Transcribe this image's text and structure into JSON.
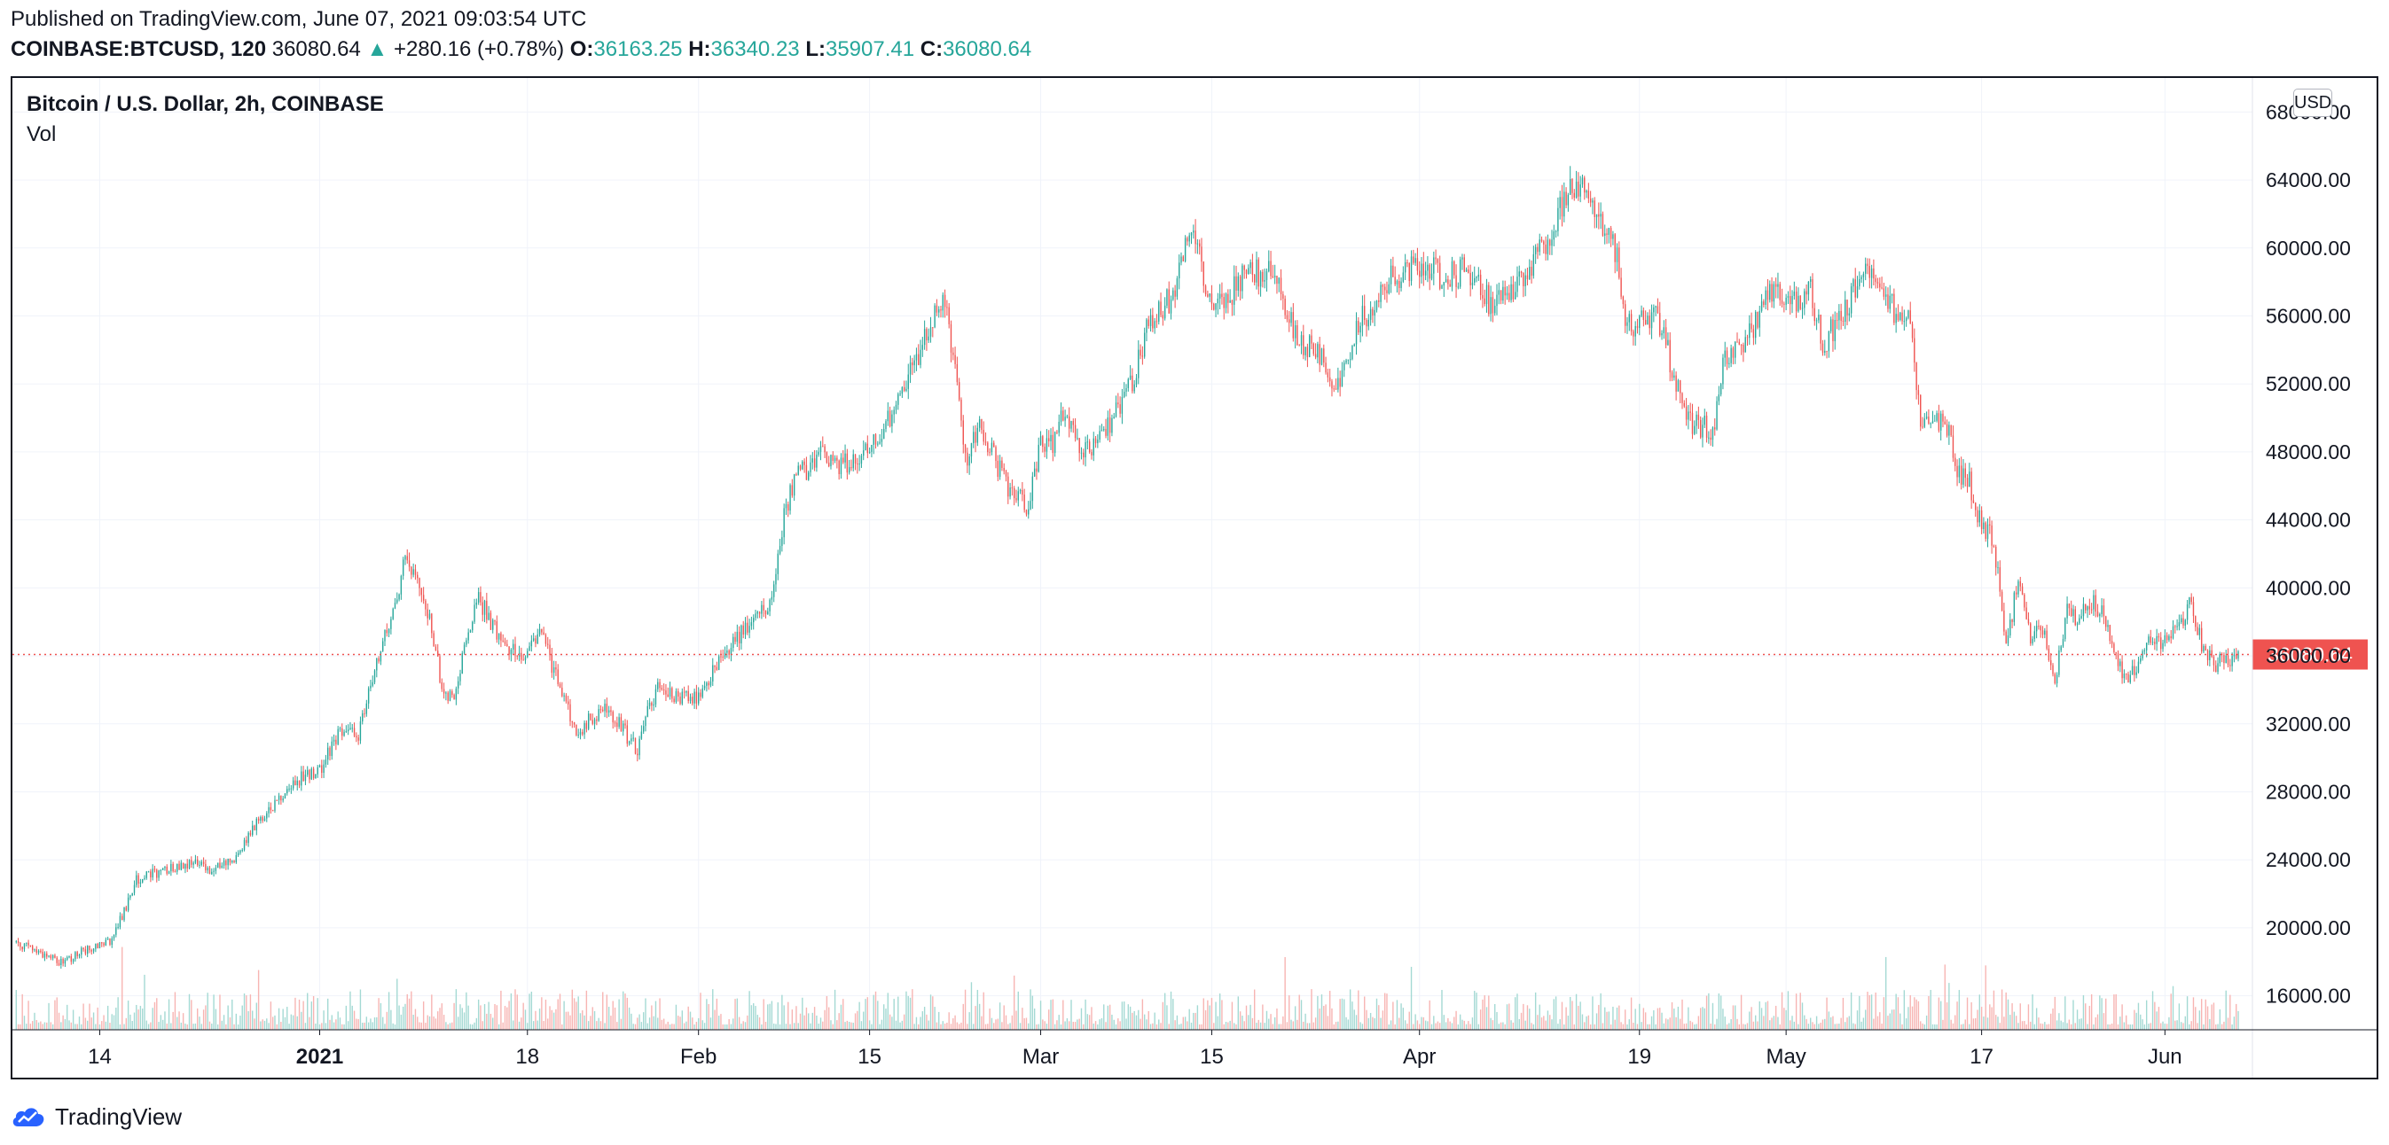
{
  "header": {
    "published": "Published on TradingView.com, June 07, 2021 09:03:54 UTC",
    "symbol": "COINBASE:BTCUSD, 120",
    "last": "36080.64",
    "change": "+280.16 (+0.78%)",
    "o_label": "O:",
    "o_value": "36163.25",
    "h_label": "H:",
    "h_value": "36340.23",
    "l_label": "L:",
    "l_value": "35907.41",
    "c_label": "C:",
    "c_value": "36080.64"
  },
  "legend": {
    "title": "Bitcoin / U.S. Dollar, 2h, COINBASE",
    "volume": "Vol"
  },
  "price_scale": {
    "currency_button": "USD"
  },
  "footer": {
    "brand": "TradingView"
  },
  "colors": {
    "up": "#26a69a",
    "down": "#ef5350",
    "up_volume": "#a3d9d3",
    "down_volume": "#f7b4b2",
    "grid": "#f0f3fa",
    "last_price": "#ef5350"
  },
  "chart_data": {
    "type": "candlestick",
    "title": "Bitcoin / U.S. Dollar, 2h, COINBASE",
    "interval": "2h",
    "ylim": [
      14000,
      70000
    ],
    "y_ticks": [
      "16000.00",
      "20000.00",
      "24000.00",
      "28000.00",
      "32000.00",
      "36000.00",
      "40000.00",
      "44000.00",
      "48000.00",
      "52000.00",
      "56000.00",
      "60000.00",
      "64000.00",
      "68000.00"
    ],
    "x_ticks": [
      {
        "label": "14",
        "date": "2020-12-14",
        "bold": false
      },
      {
        "label": "2021",
        "date": "2021-01-01",
        "bold": true
      },
      {
        "label": "18",
        "date": "2021-01-18",
        "bold": false
      },
      {
        "label": "Feb",
        "date": "2021-02-01",
        "bold": false
      },
      {
        "label": "15",
        "date": "2021-02-15",
        "bold": false
      },
      {
        "label": "Mar",
        "date": "2021-03-01",
        "bold": false
      },
      {
        "label": "15",
        "date": "2021-03-15",
        "bold": false
      },
      {
        "label": "Apr",
        "date": "2021-04-01",
        "bold": false
      },
      {
        "label": "19",
        "date": "2021-04-19",
        "bold": false
      },
      {
        "label": "May",
        "date": "2021-05-01",
        "bold": false
      },
      {
        "label": "17",
        "date": "2021-05-17",
        "bold": false
      },
      {
        "label": "Jun",
        "date": "2021-06-01",
        "bold": false
      }
    ],
    "last_price": 36080.64,
    "last_price_label": "36080.64",
    "close_path": [
      [
        "2020-12-07",
        19200
      ],
      [
        "2020-12-09",
        18600
      ],
      [
        "2020-12-11",
        17900
      ],
      [
        "2020-12-13",
        18800
      ],
      [
        "2020-12-15",
        19300
      ],
      [
        "2020-12-16",
        21000
      ],
      [
        "2020-12-17",
        22800
      ],
      [
        "2020-12-19",
        23300
      ],
      [
        "2020-12-21",
        23800
      ],
      [
        "2020-12-23",
        23500
      ],
      [
        "2020-12-25",
        24000
      ],
      [
        "2020-12-27",
        26500
      ],
      [
        "2020-12-28",
        27000
      ],
      [
        "2020-12-30",
        28700
      ],
      [
        "2021-01-01",
        29300
      ],
      [
        "2021-01-03",
        32000
      ],
      [
        "2021-01-04",
        31000
      ],
      [
        "2021-01-06",
        36200
      ],
      [
        "2021-01-08",
        41500
      ],
      [
        "2021-01-09",
        40200
      ],
      [
        "2021-01-10",
        38500
      ],
      [
        "2021-01-11",
        34000
      ],
      [
        "2021-01-12",
        33500
      ],
      [
        "2021-01-13",
        37000
      ],
      [
        "2021-01-14",
        39500
      ],
      [
        "2021-01-16",
        36500
      ],
      [
        "2021-01-18",
        36000
      ],
      [
        "2021-01-19",
        37500
      ],
      [
        "2021-01-21",
        33500
      ],
      [
        "2021-01-22",
        31500
      ],
      [
        "2021-01-24",
        32800
      ],
      [
        "2021-01-25",
        32500
      ],
      [
        "2021-01-27",
        30400
      ],
      [
        "2021-01-28",
        33200
      ],
      [
        "2021-01-29",
        34500
      ],
      [
        "2021-01-30",
        33700
      ],
      [
        "2021-02-01",
        33500
      ],
      [
        "2021-02-03",
        36200
      ],
      [
        "2021-02-05",
        37800
      ],
      [
        "2021-02-07",
        39200
      ],
      [
        "2021-02-08",
        44500
      ],
      [
        "2021-02-09",
        46500
      ],
      [
        "2021-02-11",
        47800
      ],
      [
        "2021-02-13",
        47200
      ],
      [
        "2021-02-15",
        48200
      ],
      [
        "2021-02-17",
        50200
      ],
      [
        "2021-02-19",
        53800
      ],
      [
        "2021-02-21",
        57400
      ],
      [
        "2021-02-22",
        52500
      ],
      [
        "2021-02-23",
        47500
      ],
      [
        "2021-02-24",
        49800
      ],
      [
        "2021-02-26",
        46200
      ],
      [
        "2021-02-28",
        44800
      ],
      [
        "2021-03-01",
        48800
      ],
      [
        "2021-03-02",
        48200
      ],
      [
        "2021-03-03",
        50800
      ],
      [
        "2021-03-04",
        48600
      ],
      [
        "2021-03-05",
        47800
      ],
      [
        "2021-03-06",
        48700
      ],
      [
        "2021-03-08",
        51200
      ],
      [
        "2021-03-10",
        55800
      ],
      [
        "2021-03-12",
        57300
      ],
      [
        "2021-03-13",
        60800
      ],
      [
        "2021-03-14",
        59800
      ],
      [
        "2021-03-15",
        56000
      ],
      [
        "2021-03-17",
        57800
      ],
      [
        "2021-03-18",
        58600
      ],
      [
        "2021-03-20",
        58400
      ],
      [
        "2021-03-22",
        54500
      ],
      [
        "2021-03-24",
        53800
      ],
      [
        "2021-03-25",
        51500
      ],
      [
        "2021-03-27",
        55400
      ],
      [
        "2021-03-29",
        57800
      ],
      [
        "2021-03-31",
        58800
      ],
      [
        "2021-04-01",
        59100
      ],
      [
        "2021-04-03",
        58200
      ],
      [
        "2021-04-05",
        58800
      ],
      [
        "2021-04-07",
        56500
      ],
      [
        "2021-04-09",
        58100
      ],
      [
        "2021-04-11",
        59900
      ],
      [
        "2021-04-13",
        63200
      ],
      [
        "2021-04-14",
        63800
      ],
      [
        "2021-04-15",
        62700
      ],
      [
        "2021-04-16",
        61300
      ],
      [
        "2021-04-17",
        60000
      ],
      [
        "2021-04-18",
        55500
      ],
      [
        "2021-04-19",
        55600
      ],
      [
        "2021-04-20",
        56200
      ],
      [
        "2021-04-21",
        55000
      ],
      [
        "2021-04-22",
        51800
      ],
      [
        "2021-04-23",
        49800
      ],
      [
        "2021-04-25",
        49200
      ],
      [
        "2021-04-26",
        53500
      ],
      [
        "2021-04-28",
        55000
      ],
      [
        "2021-04-30",
        57700
      ],
      [
        "2021-05-02",
        56500
      ],
      [
        "2021-05-03",
        57500
      ],
      [
        "2021-05-04",
        54200
      ],
      [
        "2021-05-06",
        56800
      ],
      [
        "2021-05-08",
        58800
      ],
      [
        "2021-05-10",
        56000
      ],
      [
        "2021-05-11",
        56800
      ],
      [
        "2021-05-12",
        50200
      ],
      [
        "2021-05-13",
        49500
      ],
      [
        "2021-05-14",
        49900
      ],
      [
        "2021-05-15",
        46800
      ],
      [
        "2021-05-16",
        46200
      ],
      [
        "2021-05-17",
        43500
      ],
      [
        "2021-05-18",
        42800
      ],
      [
        "2021-05-19",
        36500
      ],
      [
        "2021-05-20",
        40500
      ],
      [
        "2021-05-21",
        37200
      ],
      [
        "2021-05-22",
        37500
      ],
      [
        "2021-05-23",
        34700
      ],
      [
        "2021-05-24",
        38500
      ],
      [
        "2021-05-25",
        38300
      ],
      [
        "2021-05-26",
        39200
      ],
      [
        "2021-05-27",
        38500
      ],
      [
        "2021-05-28",
        35700
      ],
      [
        "2021-05-29",
        34600
      ],
      [
        "2021-05-30",
        35600
      ],
      [
        "2021-05-31",
        37300
      ],
      [
        "2021-06-01",
        36700
      ],
      [
        "2021-06-02",
        37500
      ],
      [
        "2021-06-03",
        39200
      ],
      [
        "2021-06-04",
        36800
      ],
      [
        "2021-06-05",
        35500
      ],
      [
        "2021-06-06",
        35800
      ],
      [
        "2021-06-07",
        36080.64
      ]
    ]
  }
}
